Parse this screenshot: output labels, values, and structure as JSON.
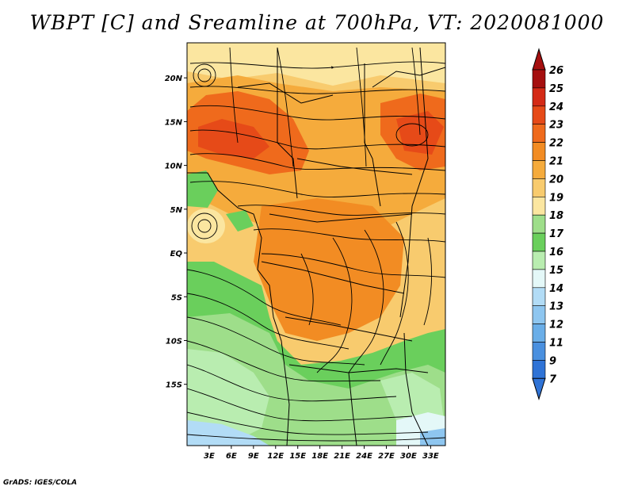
{
  "title": "WBPT [C] and Sreamline at 700hPa, VT: 2020081000",
  "credit": "GrADS: IGES/COLA",
  "map": {
    "lon_range": [
      0,
      35
    ],
    "lat_range": [
      -22,
      24
    ],
    "lon_ticks": [
      "3E",
      "6E",
      "9E",
      "12E",
      "15E",
      "18E",
      "21E",
      "24E",
      "27E",
      "30E",
      "33E"
    ],
    "lat_ticks": [
      "20N",
      "15N",
      "10N",
      "5N",
      "EQ",
      "5S",
      "10S",
      "15S"
    ],
    "lon_tick_values": [
      3,
      6,
      9,
      12,
      15,
      18,
      21,
      24,
      27,
      30,
      33
    ],
    "lat_tick_values": [
      20,
      15,
      10,
      5,
      0,
      -5,
      -10,
      -15
    ]
  },
  "colorbar": {
    "labels": [
      "26",
      "25",
      "24",
      "23",
      "22",
      "21",
      "20",
      "19",
      "18",
      "17",
      "16",
      "15",
      "14",
      "13",
      "12",
      "11",
      "9",
      "7"
    ],
    "colors": [
      "#a50f0f",
      "#d42a16",
      "#e64a18",
      "#ef6a1c",
      "#f28c23",
      "#f5ab3c",
      "#f8cb6e",
      "#fbe6a0",
      "#9ede8a",
      "#6acf5c",
      "#b9edb0",
      "#e4f8f8",
      "#b2dcf6",
      "#8ec6f0",
      "#6aaee8",
      "#4a90df",
      "#2f73d6"
    ],
    "top_color": "#a50f0f",
    "bottom_color": "#2f73d6"
  }
}
